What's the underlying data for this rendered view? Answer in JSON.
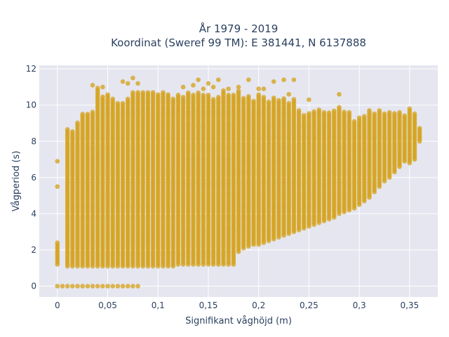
{
  "chart_data": {
    "type": "scatter",
    "title_line1": "År 1979 - 2019",
    "title_line2": "Koordinat (Sweref 99 TM): E 381441, N 6137888",
    "xlabel": "Signifikant våghöjd (m)",
    "ylabel": "Vågperiod (s)",
    "xlim": [
      -0.018,
      0.378
    ],
    "ylim": [
      -0.6,
      12.2
    ],
    "x_ticks": [
      {
        "value": 0,
        "label": "0"
      },
      {
        "value": 0.05,
        "label": "0,05"
      },
      {
        "value": 0.1,
        "label": "0,1"
      },
      {
        "value": 0.15,
        "label": "0,15"
      },
      {
        "value": 0.2,
        "label": "0,2"
      },
      {
        "value": 0.25,
        "label": "0,25"
      },
      {
        "value": 0.3,
        "label": "0,3"
      },
      {
        "value": 0.35,
        "label": "0,35"
      }
    ],
    "y_ticks": [
      {
        "value": 0,
        "label": "0"
      },
      {
        "value": 2,
        "label": "2"
      },
      {
        "value": 4,
        "label": "4"
      },
      {
        "value": 6,
        "label": "6"
      },
      {
        "value": 8,
        "label": "8"
      },
      {
        "value": 10,
        "label": "10"
      },
      {
        "value": 12,
        "label": "12"
      }
    ],
    "grid": true,
    "marker_color": "#d4a017",
    "plot_bg": "#e5e6ef",
    "columns": [
      {
        "x": 0.0,
        "bands": [
          [
            1.2,
            2.5
          ]
        ],
        "singles": [
          0,
          5.5,
          6.9
        ]
      },
      {
        "x": 0.005,
        "bands": [],
        "singles": [
          0
        ]
      },
      {
        "x": 0.01,
        "bands": [
          [
            1.1,
            8.7
          ]
        ],
        "singles": [
          0
        ]
      },
      {
        "x": 0.015,
        "bands": [
          [
            1.1,
            8.6
          ]
        ],
        "singles": [
          0
        ]
      },
      {
        "x": 0.02,
        "bands": [
          [
            1.1,
            9.1
          ]
        ],
        "singles": [
          0
        ]
      },
      {
        "x": 0.025,
        "bands": [
          [
            1.1,
            9.5
          ]
        ],
        "singles": [
          0
        ]
      },
      {
        "x": 0.03,
        "bands": [
          [
            1.1,
            9.6
          ]
        ],
        "singles": [
          0
        ]
      },
      {
        "x": 0.035,
        "bands": [
          [
            1.1,
            9.7
          ]
        ],
        "singles": [
          0,
          11.1
        ]
      },
      {
        "x": 0.04,
        "bands": [
          [
            1.1,
            11.0
          ]
        ],
        "singles": [
          0
        ]
      },
      {
        "x": 0.045,
        "bands": [
          [
            1.1,
            10.5
          ]
        ],
        "singles": [
          0,
          11.0
        ]
      },
      {
        "x": 0.05,
        "bands": [
          [
            1.1,
            10.6
          ]
        ],
        "singles": [
          0
        ]
      },
      {
        "x": 0.055,
        "bands": [
          [
            1.1,
            10.4
          ]
        ],
        "singles": [
          0
        ]
      },
      {
        "x": 0.06,
        "bands": [
          [
            1.1,
            10.2
          ]
        ],
        "singles": [
          0
        ]
      },
      {
        "x": 0.065,
        "bands": [
          [
            1.1,
            10.2
          ]
        ],
        "singles": [
          0,
          11.3
        ]
      },
      {
        "x": 0.07,
        "bands": [
          [
            1.1,
            10.4
          ]
        ],
        "singles": [
          0,
          11.2
        ]
      },
      {
        "x": 0.075,
        "bands": [
          [
            1.1,
            10.8
          ]
        ],
        "singles": [
          0,
          11.5
        ]
      },
      {
        "x": 0.08,
        "bands": [
          [
            1.1,
            10.7
          ]
        ],
        "singles": [
          0,
          11.2
        ]
      },
      {
        "x": 0.085,
        "bands": [
          [
            1.1,
            10.8
          ]
        ],
        "singles": []
      },
      {
        "x": 0.09,
        "bands": [
          [
            1.1,
            10.8
          ]
        ],
        "singles": []
      },
      {
        "x": 0.095,
        "bands": [
          [
            1.1,
            10.7
          ]
        ],
        "singles": []
      },
      {
        "x": 0.1,
        "bands": [
          [
            1.1,
            10.6
          ]
        ],
        "singles": []
      },
      {
        "x": 0.105,
        "bands": [
          [
            1.1,
            10.8
          ]
        ],
        "singles": []
      },
      {
        "x": 0.11,
        "bands": [
          [
            1.1,
            10.6
          ]
        ],
        "singles": []
      },
      {
        "x": 0.115,
        "bands": [
          [
            1.1,
            10.4
          ]
        ],
        "singles": []
      },
      {
        "x": 0.12,
        "bands": [
          [
            1.2,
            10.6
          ]
        ],
        "singles": []
      },
      {
        "x": 0.125,
        "bands": [
          [
            1.2,
            10.5
          ]
        ],
        "singles": [
          11.0
        ]
      },
      {
        "x": 0.13,
        "bands": [
          [
            1.2,
            10.7
          ]
        ],
        "singles": []
      },
      {
        "x": 0.135,
        "bands": [
          [
            1.2,
            10.6
          ]
        ],
        "singles": [
          11.1
        ]
      },
      {
        "x": 0.14,
        "bands": [
          [
            1.2,
            10.7
          ]
        ],
        "singles": [
          11.4
        ]
      },
      {
        "x": 0.145,
        "bands": [
          [
            1.2,
            10.6
          ]
        ],
        "singles": [
          10.9
        ]
      },
      {
        "x": 0.15,
        "bands": [
          [
            1.2,
            10.6
          ]
        ],
        "singles": [
          11.2
        ]
      },
      {
        "x": 0.155,
        "bands": [
          [
            1.2,
            10.4
          ]
        ],
        "singles": [
          11.0
        ]
      },
      {
        "x": 0.16,
        "bands": [
          [
            1.2,
            10.5
          ]
        ],
        "singles": [
          11.4
        ]
      },
      {
        "x": 0.165,
        "bands": [
          [
            1.2,
            10.8
          ]
        ],
        "singles": []
      },
      {
        "x": 0.17,
        "bands": [
          [
            1.2,
            10.6
          ]
        ],
        "singles": [
          10.9
        ]
      },
      {
        "x": 0.175,
        "bands": [
          [
            1.2,
            10.6
          ]
        ],
        "singles": []
      },
      {
        "x": 0.18,
        "bands": [
          [
            1.9,
            10.8
          ]
        ],
        "singles": [
          11.0
        ]
      },
      {
        "x": 0.185,
        "bands": [
          [
            2.1,
            10.4
          ]
        ],
        "singles": []
      },
      {
        "x": 0.19,
        "bands": [
          [
            2.2,
            10.5
          ]
        ],
        "singles": [
          11.4
        ]
      },
      {
        "x": 0.195,
        "bands": [
          [
            2.3,
            10.3
          ]
        ],
        "singles": []
      },
      {
        "x": 0.2,
        "bands": [
          [
            2.3,
            10.6
          ]
        ],
        "singles": [
          10.9
        ]
      },
      {
        "x": 0.205,
        "bands": [
          [
            2.4,
            10.5
          ]
        ],
        "singles": [
          10.9
        ]
      },
      {
        "x": 0.21,
        "bands": [
          [
            2.5,
            10.2
          ]
        ],
        "singles": []
      },
      {
        "x": 0.215,
        "bands": [
          [
            2.6,
            10.5
          ]
        ],
        "singles": [
          11.3
        ]
      },
      {
        "x": 0.22,
        "bands": [
          [
            2.7,
            10.3
          ]
        ],
        "singles": []
      },
      {
        "x": 0.225,
        "bands": [
          [
            2.8,
            10.4
          ]
        ],
        "singles": [
          11.4
        ]
      },
      {
        "x": 0.23,
        "bands": [
          [
            2.9,
            10.1
          ]
        ],
        "singles": [
          10.6
        ]
      },
      {
        "x": 0.235,
        "bands": [
          [
            3.0,
            10.4
          ]
        ],
        "singles": [
          11.4
        ]
      },
      {
        "x": 0.24,
        "bands": [
          [
            3.1,
            9.8
          ]
        ],
        "singles": []
      },
      {
        "x": 0.245,
        "bands": [
          [
            3.2,
            9.5
          ]
        ],
        "singles": []
      },
      {
        "x": 0.25,
        "bands": [
          [
            3.3,
            9.6
          ]
        ],
        "singles": [
          10.3
        ]
      },
      {
        "x": 0.255,
        "bands": [
          [
            3.4,
            9.7
          ]
        ],
        "singles": []
      },
      {
        "x": 0.26,
        "bands": [
          [
            3.5,
            9.8
          ]
        ],
        "singles": []
      },
      {
        "x": 0.265,
        "bands": [
          [
            3.6,
            9.7
          ]
        ],
        "singles": []
      },
      {
        "x": 0.27,
        "bands": [
          [
            3.7,
            9.6
          ]
        ],
        "singles": []
      },
      {
        "x": 0.275,
        "bands": [
          [
            3.8,
            9.7
          ]
        ],
        "singles": []
      },
      {
        "x": 0.28,
        "bands": [
          [
            4.0,
            9.9
          ]
        ],
        "singles": [
          10.6
        ]
      },
      {
        "x": 0.285,
        "bands": [
          [
            4.1,
            9.7
          ]
        ],
        "singles": []
      },
      {
        "x": 0.29,
        "bands": [
          [
            4.2,
            9.7
          ]
        ],
        "singles": []
      },
      {
        "x": 0.295,
        "bands": [
          [
            4.3,
            9.1
          ]
        ],
        "singles": []
      },
      {
        "x": 0.3,
        "bands": [
          [
            4.5,
            9.4
          ]
        ],
        "singles": []
      },
      {
        "x": 0.305,
        "bands": [
          [
            4.7,
            9.4
          ]
        ],
        "singles": []
      },
      {
        "x": 0.31,
        "bands": [
          [
            4.9,
            9.8
          ]
        ],
        "singles": []
      },
      {
        "x": 0.315,
        "bands": [
          [
            5.2,
            9.6
          ]
        ],
        "singles": []
      },
      {
        "x": 0.32,
        "bands": [
          [
            5.5,
            9.8
          ]
        ],
        "singles": []
      },
      {
        "x": 0.325,
        "bands": [
          [
            5.8,
            9.6
          ]
        ],
        "singles": []
      },
      {
        "x": 0.33,
        "bands": [
          [
            6.0,
            9.6
          ]
        ],
        "singles": []
      },
      {
        "x": 0.335,
        "bands": [
          [
            6.3,
            9.6
          ]
        ],
        "singles": []
      },
      {
        "x": 0.34,
        "bands": [
          [
            6.6,
            9.7
          ]
        ],
        "singles": []
      },
      {
        "x": 0.345,
        "bands": [
          [
            6.9,
            9.5
          ]
        ],
        "singles": []
      },
      {
        "x": 0.35,
        "bands": [
          [
            6.8,
            9.8
          ]
        ],
        "singles": []
      },
      {
        "x": 0.355,
        "bands": [
          [
            7.0,
            9.6
          ]
        ],
        "singles": []
      },
      {
        "x": 0.36,
        "bands": [
          [
            8.0,
            8.8
          ]
        ],
        "singles": []
      }
    ]
  }
}
